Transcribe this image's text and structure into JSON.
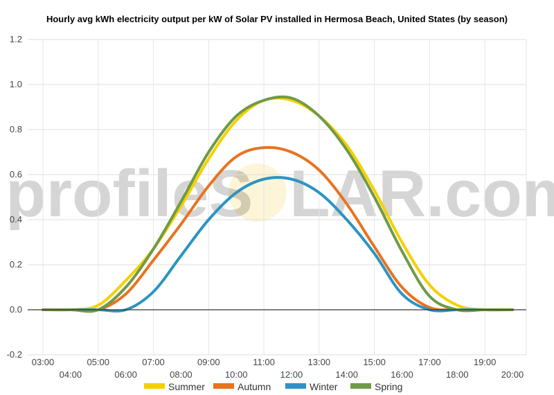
{
  "watermark": {
    "text_left": "profileS",
    "text_right": "LAR.com",
    "sun_color": "#f6d24a"
  },
  "chart_data": {
    "type": "line",
    "title": "Hourly avg kWh electricity output per kW of Solar PV installed in Hermosa Beach, United States (by season)",
    "xlabel": "",
    "ylabel": "",
    "x": [
      "03:00",
      "04:00",
      "05:00",
      "06:00",
      "07:00",
      "08:00",
      "09:00",
      "10:00",
      "11:00",
      "12:00",
      "13:00",
      "14:00",
      "15:00",
      "16:00",
      "17:00",
      "18:00",
      "19:00",
      "20:00"
    ],
    "x_ticks_upper": [
      "03:00",
      "05:00",
      "07:00",
      "09:00",
      "11:00",
      "13:00",
      "15:00",
      "17:00",
      "19:00"
    ],
    "x_ticks_lower": [
      "04:00",
      "06:00",
      "08:00",
      "10:00",
      "12:00",
      "14:00",
      "16:00",
      "18:00",
      "20:00"
    ],
    "ylim": [
      -0.2,
      1.2
    ],
    "y_ticks": [
      "-0.2",
      "0.0",
      "0.2",
      "0.4",
      "0.6",
      "0.8",
      "1.0",
      "1.2"
    ],
    "grid": true,
    "legend_position": "bottom",
    "series": [
      {
        "name": "Summer",
        "color": "#f5d000",
        "values": [
          0,
          0,
          0.02,
          0.13,
          0.27,
          0.46,
          0.67,
          0.84,
          0.93,
          0.93,
          0.86,
          0.73,
          0.53,
          0.3,
          0.11,
          0.02,
          0,
          0
        ]
      },
      {
        "name": "Autumn",
        "color": "#e8731f",
        "values": [
          0,
          0,
          0,
          0.07,
          0.22,
          0.38,
          0.55,
          0.68,
          0.72,
          0.7,
          0.62,
          0.47,
          0.28,
          0.1,
          0.01,
          0,
          0,
          0
        ]
      },
      {
        "name": "Winter",
        "color": "#2a94c4",
        "values": [
          0,
          0,
          0,
          0,
          0.08,
          0.24,
          0.4,
          0.52,
          0.58,
          0.58,
          0.52,
          0.4,
          0.25,
          0.07,
          0,
          0,
          0,
          0
        ]
      },
      {
        "name": "Spring",
        "color": "#6f9a48",
        "values": [
          0,
          0,
          0,
          0.1,
          0.27,
          0.48,
          0.7,
          0.86,
          0.93,
          0.94,
          0.86,
          0.71,
          0.5,
          0.26,
          0.06,
          0,
          0,
          0
        ]
      }
    ]
  }
}
